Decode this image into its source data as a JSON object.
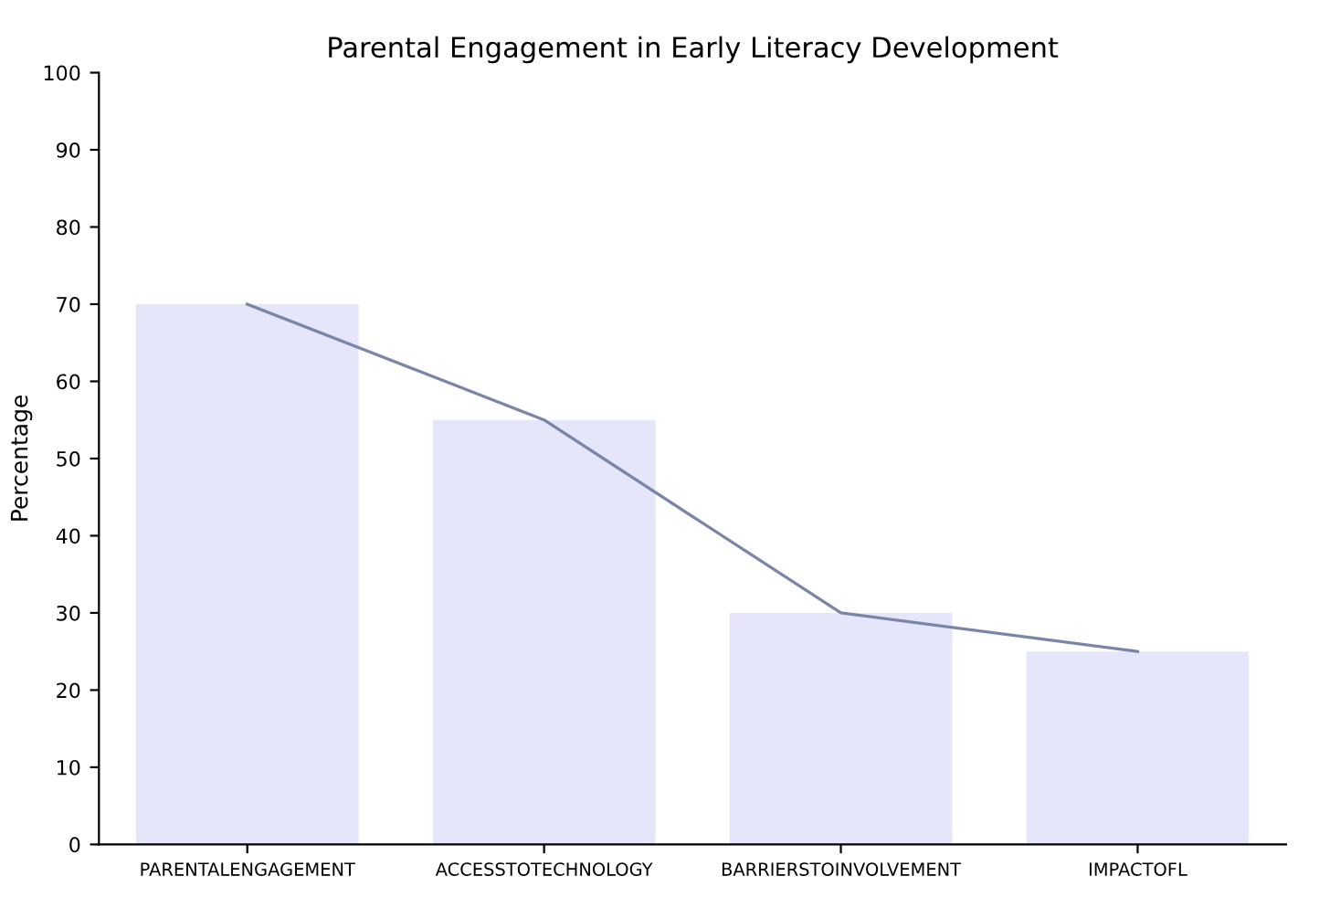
{
  "chart_data": {
    "type": "bar",
    "title": "Parental Engagement in Early Literacy Development",
    "ylabel": "Percentage",
    "categories": [
      "PARENTALENGAGEMENT",
      "ACCESSTOTECHNOLOGY",
      "BARRIERSTOINVOLVEMENT",
      "IMPACTOFL"
    ],
    "series": [
      {
        "color": "#e6e6fa",
        "values": [
          70,
          55,
          30,
          25
        ]
      },
      {
        "type": "line",
        "color": "#7a86a8",
        "values": [
          70,
          55,
          30,
          25
        ]
      }
    ],
    "ylim": [
      0,
      100
    ],
    "yticks": [
      0,
      10,
      20,
      30,
      40,
      50,
      60,
      70,
      80,
      90,
      100
    ],
    "grid": false,
    "legend": false
  }
}
